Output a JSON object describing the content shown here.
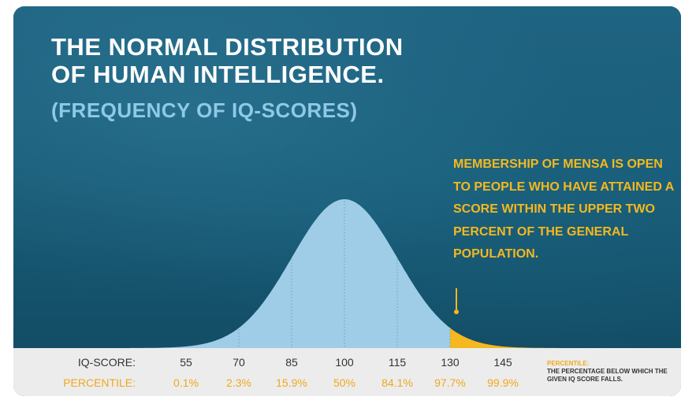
{
  "title_line1": "THE NORMAL DISTRIBUTION",
  "title_line2": "OF HUMAN INTELLIGENCE.",
  "subtitle": "(FREQUENCY OF IQ-SCORES)",
  "annotation": "MEMBERSHIP OF MENSA IS OPEN TO PEOPLE WHO HAVE ATTAINED A SCORE WITHIN THE UPPER TWO PERCENT OF THE GENERAL POPULATION.",
  "legend": {
    "heading": "PERCENTILE:",
    "text": "THE PERCENTAGE BELOW WHICH THE GIVEN IQ SCORE FALLS."
  },
  "colors": {
    "curve_fill": "#9fcde8",
    "mensa_fill": "#f5b81e",
    "background": "#1d5f7a",
    "accent": "#f5b81e"
  },
  "chart_data": {
    "type": "area",
    "title": "THE NORMAL DISTRIBUTION OF HUMAN INTELLIGENCE.",
    "subtitle": "(FREQUENCY OF IQ-SCORES)",
    "row_labels": {
      "x": "IQ-SCORE:",
      "percentile": "PERCENTILE:"
    },
    "distribution": {
      "mean": 100,
      "sd": 15
    },
    "xlim": [
      55,
      145
    ],
    "x": [
      55,
      70,
      85,
      100,
      115,
      130,
      145
    ],
    "percentiles": [
      "0.1%",
      "2.3%",
      "15.9%",
      "50%",
      "84.1%",
      "97.7%",
      "99.9%"
    ],
    "highlight_from": 130,
    "gridlines": "vertical-dotted"
  }
}
